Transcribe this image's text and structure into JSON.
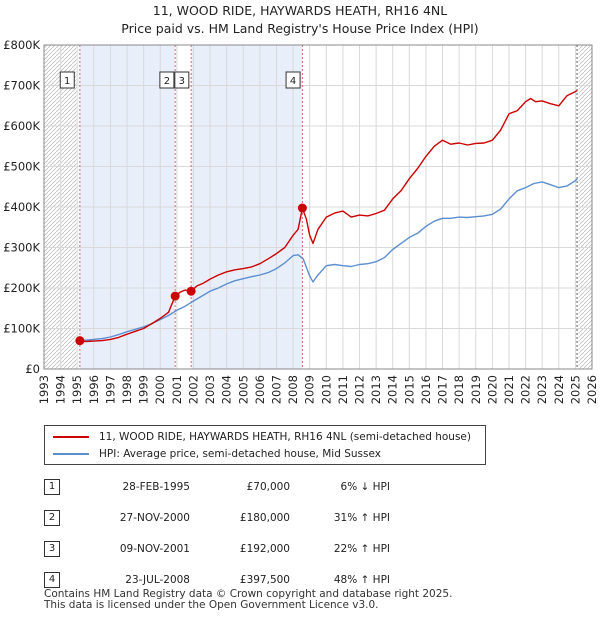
{
  "chart_data": {
    "type": "line",
    "title": "11, WOOD RIDE, HAYWARDS HEATH, RH16 4NL",
    "subtitle": "Price paid vs. HM Land Registry's House Price Index (HPI)",
    "xlabel": "",
    "ylabel": "",
    "xlim": [
      1993,
      2026
    ],
    "ylim": [
      0,
      800000
    ],
    "y_ticks": [
      {
        "value": 0,
        "label": "£0"
      },
      {
        "value": 100000,
        "label": "£100K"
      },
      {
        "value": 200000,
        "label": "£200K"
      },
      {
        "value": 300000,
        "label": "£300K"
      },
      {
        "value": 400000,
        "label": "£400K"
      },
      {
        "value": 500000,
        "label": "£500K"
      },
      {
        "value": 600000,
        "label": "£600K"
      },
      {
        "value": 700000,
        "label": "£700K"
      },
      {
        "value": 800000,
        "label": "£800K"
      }
    ],
    "x_ticks": [
      "1993",
      "1994",
      "1995",
      "1996",
      "1997",
      "1998",
      "1999",
      "2000",
      "2001",
      "2002",
      "2003",
      "2004",
      "2005",
      "2006",
      "2007",
      "2008",
      "2009",
      "2010",
      "2011",
      "2012",
      "2013",
      "2014",
      "2015",
      "2016",
      "2017",
      "2018",
      "2019",
      "2020",
      "2021",
      "2022",
      "2023",
      "2024",
      "2025",
      "2026"
    ],
    "grid": true,
    "shaded_ranges": [
      [
        1995.16,
        2000.9
      ],
      [
        2001.86,
        2008.56
      ]
    ],
    "hatched_ranges": [
      [
        1993,
        1994.96
      ],
      [
        2025.2,
        2026
      ]
    ],
    "series": [
      {
        "name": "11, WOOD RIDE, HAYWARDS HEATH, RH16 4NL (semi-detached house)",
        "color": "#cc0000",
        "x": [
          1995.16,
          1995.5,
          1996,
          1996.5,
          1997,
          1997.5,
          1998,
          1998.5,
          1999,
          1999.5,
          2000,
          2000.5,
          2000.9,
          2001.2,
          2001.5,
          2001.86,
          2002.2,
          2002.6,
          2003,
          2003.5,
          2004,
          2004.5,
          2005,
          2005.5,
          2006,
          2006.5,
          2007,
          2007.5,
          2008,
          2008.3,
          2008.56,
          2008.8,
          2009,
          2009.2,
          2009.5,
          2010,
          2010.5,
          2011,
          2011.5,
          2012,
          2012.5,
          2013,
          2013.5,
          2014,
          2014.5,
          2015,
          2015.5,
          2016,
          2016.5,
          2017,
          2017.5,
          2018,
          2018.5,
          2019,
          2019.5,
          2020,
          2020.5,
          2021,
          2021.5,
          2022,
          2022.3,
          2022.6,
          2023,
          2023.5,
          2024,
          2024.5,
          2025,
          2025.1
        ],
        "y": [
          70000,
          68000,
          69000,
          70000,
          73000,
          78000,
          86000,
          93000,
          100000,
          112000,
          125000,
          140000,
          180000,
          190000,
          195000,
          192000,
          205000,
          212000,
          222000,
          232000,
          240000,
          245000,
          248000,
          252000,
          260000,
          272000,
          285000,
          300000,
          330000,
          345000,
          397500,
          370000,
          330000,
          310000,
          345000,
          375000,
          385000,
          390000,
          375000,
          380000,
          378000,
          384000,
          392000,
          420000,
          440000,
          470000,
          495000,
          525000,
          550000,
          565000,
          555000,
          558000,
          553000,
          557000,
          558000,
          565000,
          590000,
          630000,
          638000,
          660000,
          668000,
          660000,
          662000,
          655000,
          650000,
          675000,
          685000,
          688000
        ]
      },
      {
        "name": "HPI: Average price, semi-detached house, Mid Sussex",
        "color": "#5b8fd0",
        "x": [
          1995,
          1995.5,
          1996,
          1996.5,
          1997,
          1997.5,
          1998,
          1998.5,
          1999,
          1999.5,
          2000,
          2000.5,
          2001,
          2001.5,
          2002,
          2002.5,
          2003,
          2003.5,
          2004,
          2004.5,
          2005,
          2005.5,
          2006,
          2006.5,
          2007,
          2007.5,
          2008,
          2008.3,
          2008.6,
          2009,
          2009.2,
          2009.5,
          2010,
          2010.5,
          2011,
          2011.5,
          2012,
          2012.5,
          2013,
          2013.5,
          2014,
          2014.5,
          2015,
          2015.5,
          2016,
          2016.5,
          2017,
          2017.5,
          2018,
          2018.5,
          2019,
          2019.5,
          2020,
          2020.5,
          2021,
          2021.5,
          2022,
          2022.5,
          2023,
          2023.5,
          2024,
          2024.5,
          2025,
          2025.1
        ],
        "y": [
          72000,
          71000,
          73000,
          75000,
          79000,
          85000,
          92000,
          98000,
          104000,
          112000,
          122000,
          132000,
          145000,
          155000,
          168000,
          180000,
          192000,
          200000,
          210000,
          218000,
          223000,
          228000,
          232000,
          238000,
          248000,
          262000,
          280000,
          282000,
          272000,
          230000,
          215000,
          232000,
          255000,
          258000,
          255000,
          253000,
          258000,
          260000,
          265000,
          275000,
          295000,
          310000,
          325000,
          335000,
          352000,
          365000,
          372000,
          372000,
          375000,
          374000,
          376000,
          378000,
          382000,
          395000,
          420000,
          440000,
          448000,
          458000,
          462000,
          455000,
          448000,
          452000,
          465000,
          470000
        ]
      }
    ],
    "transactions": [
      {
        "label": "1",
        "date": "28-FEB-1995",
        "price": "£70,000",
        "hpi": "6% ↓ HPI",
        "x": 1995.16,
        "value": 70000
      },
      {
        "label": "2",
        "date": "27-NOV-2000",
        "price": "£180,000",
        "hpi": "31% ↑ HPI",
        "x": 2000.9,
        "value": 180000
      },
      {
        "label": "3",
        "date": "09-NOV-2001",
        "price": "£192,000",
        "hpi": "22% ↑ HPI",
        "x": 2001.86,
        "value": 192000
      },
      {
        "label": "4",
        "date": "23-JUL-2008",
        "price": "£397,500",
        "hpi": "48% ↑ HPI",
        "x": 2008.56,
        "value": 397500
      }
    ],
    "marker_boxes": [
      {
        "label": "1",
        "x": 1995.16,
        "label_x": 1994.4
      },
      {
        "label": "2",
        "x": 2000.9,
        "label_x": 2000.4
      },
      {
        "label": "3",
        "x": 2001.86,
        "label_x": 2001.3
      },
      {
        "label": "4",
        "x": 2008.56,
        "label_x": 2008.0
      }
    ]
  },
  "legend": {
    "property": "11, WOOD RIDE, HAYWARDS HEATH, RH16 4NL (semi-detached house)",
    "hpi": "HPI: Average price, semi-detached house, Mid Sussex"
  },
  "footer": {
    "line1": "Contains HM Land Registry data © Crown copyright and database right 2025.",
    "line2": "This data is licensed under the Open Government Licence v3.0."
  }
}
